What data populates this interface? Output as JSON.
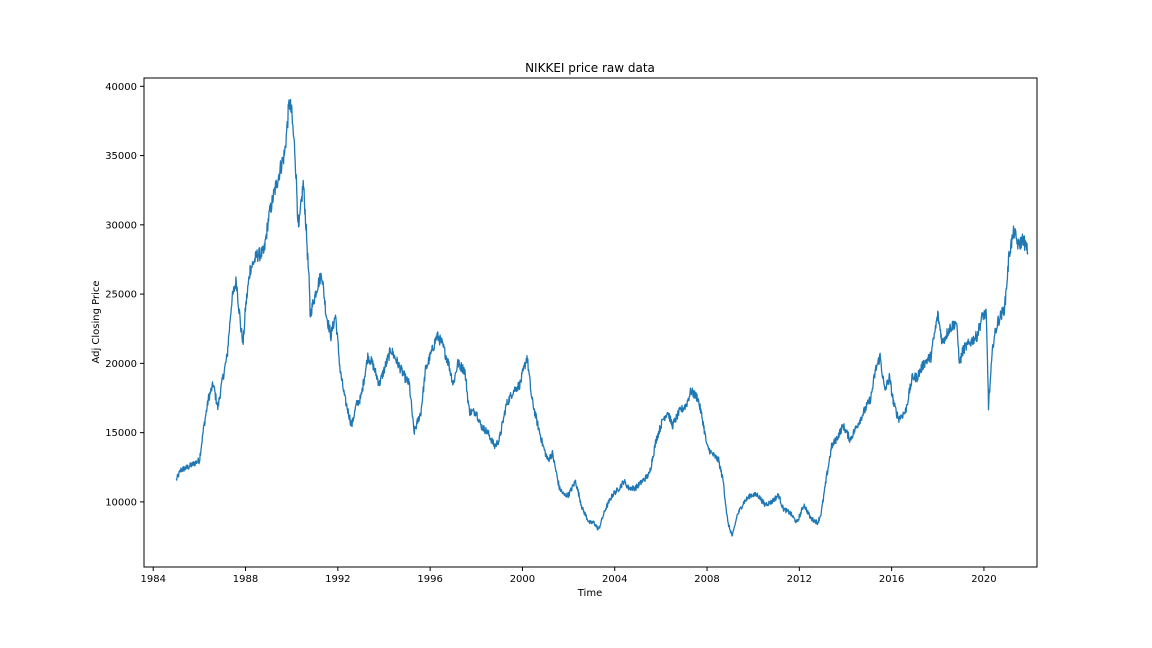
{
  "chart_data": {
    "type": "line",
    "title": "NIKKEI price raw data",
    "xlabel": "Time",
    "ylabel": "Adj Closing Price",
    "xlim": [
      1983.6,
      2022.3
    ],
    "ylim": [
      5300,
      40600
    ],
    "x_ticks": [
      1984,
      1988,
      1992,
      1996,
      2000,
      2004,
      2008,
      2012,
      2016,
      2020
    ],
    "x_tick_labels": [
      "1984",
      "1988",
      "1992",
      "1996",
      "2000",
      "2004",
      "2008",
      "2012",
      "2016",
      "2020"
    ],
    "y_ticks": [
      10000,
      15000,
      20000,
      25000,
      30000,
      35000,
      40000
    ],
    "y_tick_labels": [
      "10000",
      "15000",
      "20000",
      "25000",
      "30000",
      "35000",
      "40000"
    ],
    "grid": false,
    "series": [
      {
        "color": "#1f77b4",
        "x": [
          1985.0,
          1985.2,
          1985.5,
          1985.8,
          1986.0,
          1986.2,
          1986.4,
          1986.6,
          1986.8,
          1987.0,
          1987.2,
          1987.4,
          1987.6,
          1987.8,
          1987.9,
          1988.0,
          1988.2,
          1988.5,
          1988.8,
          1989.0,
          1989.2,
          1989.5,
          1989.7,
          1989.9,
          1990.0,
          1990.15,
          1990.3,
          1990.5,
          1990.6,
          1990.75,
          1990.8,
          1990.95,
          1991.1,
          1991.3,
          1991.5,
          1991.7,
          1991.9,
          1992.1,
          1992.3,
          1992.6,
          1992.8,
          1993.0,
          1993.3,
          1993.5,
          1993.8,
          1994.0,
          1994.3,
          1994.6,
          1994.9,
          1995.1,
          1995.3,
          1995.6,
          1995.8,
          1996.1,
          1996.3,
          1996.5,
          1996.8,
          1997.0,
          1997.2,
          1997.5,
          1997.7,
          1998.0,
          1998.2,
          1998.5,
          1998.8,
          1999.0,
          1999.3,
          1999.6,
          1999.9,
          2000.2,
          2000.4,
          2000.6,
          2000.9,
          2001.1,
          2001.3,
          2001.6,
          2001.8,
          2002.0,
          2002.3,
          2002.6,
          2002.9,
          2003.1,
          2003.3,
          2003.6,
          2003.9,
          2004.2,
          2004.4,
          2004.6,
          2004.9,
          2005.2,
          2005.5,
          2005.8,
          2006.1,
          2006.3,
          2006.5,
          2006.8,
          2007.1,
          2007.3,
          2007.6,
          2007.8,
          2008.0,
          2008.2,
          2008.5,
          2008.7,
          2008.9,
          2009.1,
          2009.3,
          2009.6,
          2009.9,
          2010.2,
          2010.5,
          2010.8,
          2011.1,
          2011.3,
          2011.6,
          2011.9,
          2012.2,
          2012.5,
          2012.8,
          2012.95,
          2013.2,
          2013.4,
          2013.6,
          2013.9,
          2014.2,
          2014.5,
          2014.8,
          2015.1,
          2015.3,
          2015.5,
          2015.7,
          2015.9,
          2016.1,
          2016.3,
          2016.6,
          2016.9,
          2017.1,
          2017.4,
          2017.7,
          2018.0,
          2018.2,
          2018.5,
          2018.8,
          2018.95,
          2019.1,
          2019.4,
          2019.7,
          2019.95,
          2020.1,
          2020.2,
          2020.4,
          2020.6,
          2020.9,
          2021.1,
          2021.3,
          2021.5,
          2021.7,
          2021.9
        ],
        "y": [
          11600,
          12300,
          12500,
          12800,
          13000,
          15500,
          17500,
          18500,
          16800,
          18800,
          20500,
          24500,
          26000,
          22500,
          21500,
          24000,
          26800,
          27800,
          28000,
          30500,
          32000,
          34000,
          35200,
          38900,
          38000,
          35000,
          29500,
          33000,
          30500,
          26000,
          23500,
          24500,
          25500,
          26500,
          23500,
          22000,
          23500,
          19500,
          17500,
          15500,
          17000,
          17500,
          20500,
          20000,
          18500,
          19500,
          21000,
          20000,
          19000,
          18500,
          15000,
          16500,
          19500,
          21000,
          22000,
          21500,
          20000,
          18500,
          20000,
          19500,
          16500,
          16500,
          15500,
          15000,
          14000,
          14500,
          17000,
          18000,
          18500,
          20500,
          17500,
          16000,
          14000,
          13000,
          13500,
          11000,
          10500,
          10500,
          11500,
          9500,
          8500,
          8500,
          8000,
          9500,
          10500,
          11000,
          11500,
          11000,
          11000,
          11500,
          12000,
          14500,
          16000,
          16500,
          15500,
          16500,
          17000,
          18000,
          17500,
          16000,
          14000,
          13500,
          13000,
          11500,
          8500,
          7500,
          9000,
          10000,
          10500,
          10500,
          9800,
          10000,
          10500,
          9500,
          9200,
          8500,
          9800,
          8800,
          8500,
          9200,
          12000,
          14000,
          14500,
          15500,
          14500,
          15500,
          16500,
          17500,
          19500,
          20500,
          18000,
          19000,
          17000,
          16000,
          16500,
          19000,
          19000,
          20000,
          20500,
          23500,
          21500,
          22500,
          23000,
          20000,
          21000,
          21500,
          22000,
          23500,
          23500,
          17000,
          21500,
          23000,
          24000,
          28000,
          29500,
          28500,
          29000,
          28000
        ]
      }
    ]
  }
}
